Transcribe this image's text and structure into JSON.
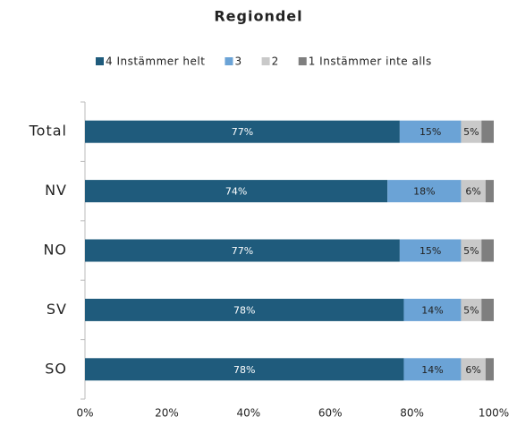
{
  "chart_data": {
    "type": "stacked-barh",
    "title": "Regiondel",
    "categories": [
      "Total",
      "NV",
      "NO",
      "SV",
      "SO"
    ],
    "series": [
      {
        "name": "4 Instämmer helt",
        "color": "#1f5b7c",
        "values": [
          77,
          74,
          77,
          78,
          78
        ],
        "value_labels": [
          "77%",
          "74%",
          "77%",
          "78%",
          "78%"
        ]
      },
      {
        "name": "3",
        "color": "#6ba3d6",
        "values": [
          15,
          18,
          15,
          14,
          14
        ],
        "value_labels": [
          "15%",
          "18%",
          "15%",
          "14%",
          "14%"
        ]
      },
      {
        "name": "2",
        "color": "#c9c9c9",
        "values": [
          5,
          6,
          5,
          5,
          6
        ],
        "value_labels": [
          "5%",
          "6%",
          "5%",
          "5%",
          "6%"
        ]
      },
      {
        "name": "1 Instämmer inte alls",
        "color": "#7f7f7f",
        "values": [
          3,
          2,
          3,
          3,
          2
        ]
      }
    ],
    "xlim": [
      0,
      100
    ],
    "xticks": [
      {
        "value": 0,
        "label": "0%"
      },
      {
        "value": 20,
        "label": "20%"
      },
      {
        "value": 40,
        "label": "40%"
      },
      {
        "value": 60,
        "label": "60%"
      },
      {
        "value": 80,
        "label": "80%"
      },
      {
        "value": 100,
        "label": "100%"
      }
    ],
    "legend": "top"
  }
}
